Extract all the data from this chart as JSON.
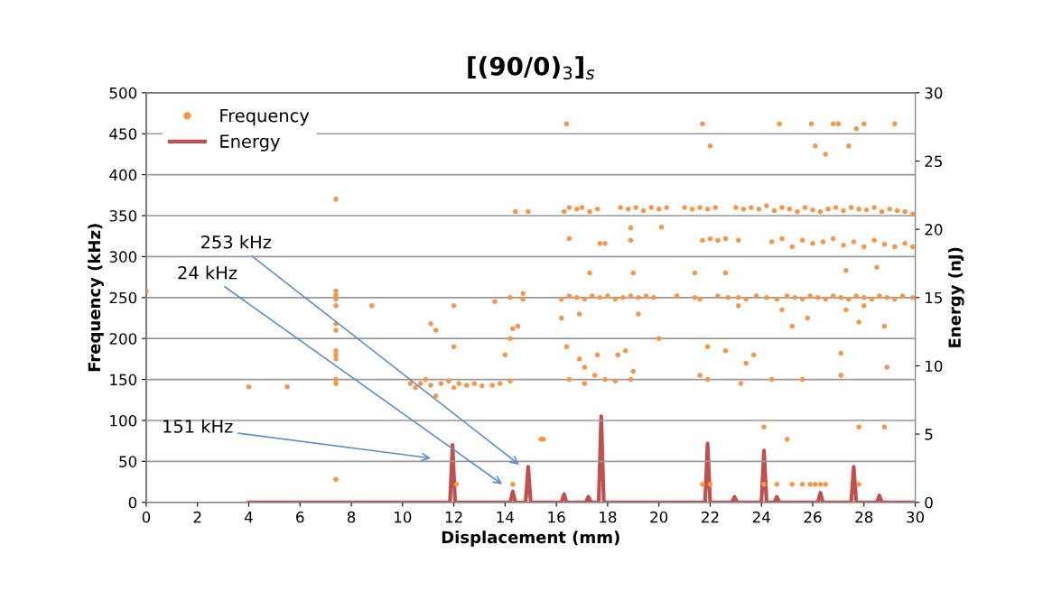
{
  "chart_data": {
    "type": "scatter",
    "title": "[(90/0)$_{3}$]$_{s}$",
    "xlabel": "Displacement (mm)",
    "ylabel": "Frequency (kHz)",
    "y2label": "Energy (nJ)",
    "xlim": [
      0,
      30
    ],
    "xticks": [
      0,
      2,
      4,
      6,
      8,
      10,
      12,
      14,
      16,
      18,
      20,
      22,
      24,
      26,
      28,
      30
    ],
    "ylim": [
      0,
      500
    ],
    "yticks": [
      0,
      50,
      100,
      150,
      200,
      250,
      300,
      350,
      400,
      450,
      500
    ],
    "y2lim": [
      0,
      30
    ],
    "y2ticks": [
      0,
      5,
      10,
      15,
      20,
      25,
      30
    ],
    "grid": "y",
    "legend": "top left",
    "annotations": [
      "253 kHz",
      "24 kHz",
      "151 kHz"
    ],
    "series": [
      {
        "name": "Frequency",
        "color": "#f79646",
        "marker": "circle",
        "x": [
          0,
          4,
          5.5,
          7.4,
          7.4,
          7.4,
          7.4,
          7.4,
          7.4,
          7.4,
          7.4,
          7.4,
          7.4,
          7.4,
          7.4,
          7.4,
          8.8,
          10.3,
          10.5,
          10.7,
          10.9,
          11.1,
          11.3,
          11.5,
          11.8,
          12.0,
          12.2,
          12.5,
          12.8,
          13.1,
          13.5,
          13.8,
          14.2,
          11.1,
          11.3,
          12.0,
          12.0,
          14.0,
          13.6,
          14.2,
          14.3,
          14.2,
          14.5,
          14.7,
          14.7,
          14.4,
          14.9,
          14.3,
          12.1,
          15.4,
          16.4,
          21.7,
          24.7,
          25.95,
          26.8,
          27.0,
          27.7,
          28.0,
          29.2,
          22.0,
          26.1,
          27.4,
          26.5,
          16.3,
          16.5,
          16.8,
          17.0,
          17.3,
          17.6,
          18.5,
          18.8,
          19.1,
          19.4,
          19.7,
          20.0,
          20.3,
          21.0,
          21.3,
          21.6,
          21.9,
          22.2,
          23.0,
          23.3,
          23.6,
          23.9,
          24.2,
          24.5,
          24.8,
          25.1,
          25.4,
          25.7,
          26.0,
          26.3,
          26.6,
          26.9,
          27.2,
          27.5,
          27.8,
          28.1,
          28.4,
          28.7,
          29.0,
          29.3,
          29.6,
          29.9,
          16.5,
          17.7,
          17.9,
          18.9,
          18.9,
          20.1,
          21.7,
          22.0,
          22.3,
          22.6,
          23.1,
          24.4,
          24.8,
          25.2,
          25.6,
          26.0,
          26.4,
          26.8,
          27.2,
          27.6,
          28.0,
          28.4,
          28.8,
          29.2,
          29.6,
          29.9,
          16.2,
          16.5,
          16.8,
          17.1,
          17.4,
          17.7,
          18.0,
          18.3,
          18.6,
          18.9,
          19.2,
          19.5,
          19.8,
          20.7,
          21.4,
          21.6,
          22.3,
          22.7,
          23.1,
          23.4,
          23.8,
          24.2,
          24.6,
          25.0,
          25.3,
          25.6,
          25.9,
          26.2,
          26.5,
          26.8,
          27.1,
          27.4,
          27.7,
          28.0,
          28.3,
          28.6,
          28.9,
          29.2,
          29.5,
          29.9,
          17.3,
          19.0,
          21.4,
          22.6,
          27.3,
          28.5,
          16.2,
          16.9,
          23.1,
          24.8,
          25.2,
          25.8,
          27.3,
          27.8,
          28.0,
          28.8,
          20.0,
          19.2,
          16.4,
          16.9,
          17.1,
          17.6,
          18.4,
          18.7,
          19.0,
          21.9,
          22.6,
          23.4,
          23.7,
          27.1,
          28.9,
          16.5,
          17.1,
          17.5,
          17.9,
          18.3,
          18.9,
          21.6,
          21.9,
          23.2,
          24.4,
          25.6,
          27.1,
          21.7,
          22.0,
          24.1,
          24.6,
          25.2,
          25.6,
          25.9,
          26.1,
          26.3,
          26.5,
          27.8,
          24.1,
          27.8,
          28.8,
          25.0,
          15.5
        ],
        "values": [
          258,
          141,
          141,
          370,
          258,
          253,
          248,
          240,
          218,
          210,
          185,
          180,
          175,
          150,
          145,
          28,
          240,
          145,
          140,
          145,
          150,
          143,
          130,
          145,
          148,
          140,
          145,
          143,
          145,
          142,
          143,
          145,
          148,
          218,
          210,
          240,
          190,
          180,
          245,
          250,
          212,
          200,
          215,
          255,
          248,
          355,
          355,
          22,
          22,
          77,
          462,
          462,
          462,
          462,
          462,
          462,
          456,
          462,
          462,
          435,
          435,
          435,
          425,
          355,
          360,
          358,
          360,
          355,
          358,
          360,
          358,
          360,
          356,
          360,
          358,
          360,
          360,
          358,
          360,
          358,
          360,
          360,
          358,
          360,
          358,
          362,
          356,
          360,
          358,
          355,
          360,
          357,
          355,
          358,
          360,
          356,
          360,
          358,
          357,
          360,
          355,
          358,
          356,
          355,
          352,
          322,
          316,
          316,
          320,
          335,
          336,
          320,
          322,
          320,
          322,
          320,
          318,
          322,
          312,
          320,
          316,
          318,
          322,
          314,
          318,
          312,
          320,
          315,
          312,
          316,
          312,
          248,
          252,
          250,
          248,
          252,
          250,
          252,
          248,
          250,
          252,
          250,
          252,
          250,
          252,
          250,
          248,
          252,
          250,
          250,
          248,
          252,
          250,
          248,
          252,
          250,
          248,
          252,
          250,
          248,
          252,
          250,
          248,
          252,
          250,
          248,
          252,
          250,
          248,
          252,
          250,
          280,
          280,
          280,
          280,
          283,
          287,
          225,
          230,
          240,
          235,
          215,
          225,
          235,
          220,
          240,
          215,
          200,
          230,
          190,
          175,
          165,
          180,
          180,
          185,
          160,
          190,
          185,
          170,
          180,
          182,
          165,
          150,
          145,
          155,
          150,
          148,
          150,
          155,
          150,
          145,
          150,
          150,
          155,
          22,
          22,
          22,
          22,
          22,
          22,
          22,
          22,
          22,
          22,
          22,
          92,
          92,
          92,
          77,
          77
        ]
      },
      {
        "name": "Energy",
        "type": "line",
        "axis": "y2",
        "color": "#c0504d",
        "marker": "none",
        "x": [
          4,
          11.85,
          11.95,
          12.05,
          14.2,
          14.3,
          14.4,
          14.8,
          14.9,
          15.0,
          16.2,
          16.3,
          16.4,
          17.15,
          17.25,
          17.35,
          17.65,
          17.75,
          17.85,
          21.8,
          21.9,
          22.0,
          22.85,
          22.95,
          23.05,
          24.0,
          24.1,
          24.2,
          24.5,
          24.6,
          24.7,
          26.2,
          26.3,
          26.4,
          27.5,
          27.6,
          27.7,
          28.5,
          28.6,
          28.7,
          30
        ],
        "values": [
          0,
          0,
          4.2,
          0,
          0,
          0.8,
          0,
          0,
          2.6,
          0,
          0,
          0.6,
          0,
          0,
          0.4,
          0,
          0,
          6.3,
          0,
          0,
          4.3,
          0,
          0,
          0.4,
          0,
          0,
          3.8,
          0,
          0,
          0.4,
          0,
          0,
          0.7,
          0,
          0,
          2.6,
          0,
          0,
          0.5,
          0,
          0
        ]
      }
    ]
  }
}
